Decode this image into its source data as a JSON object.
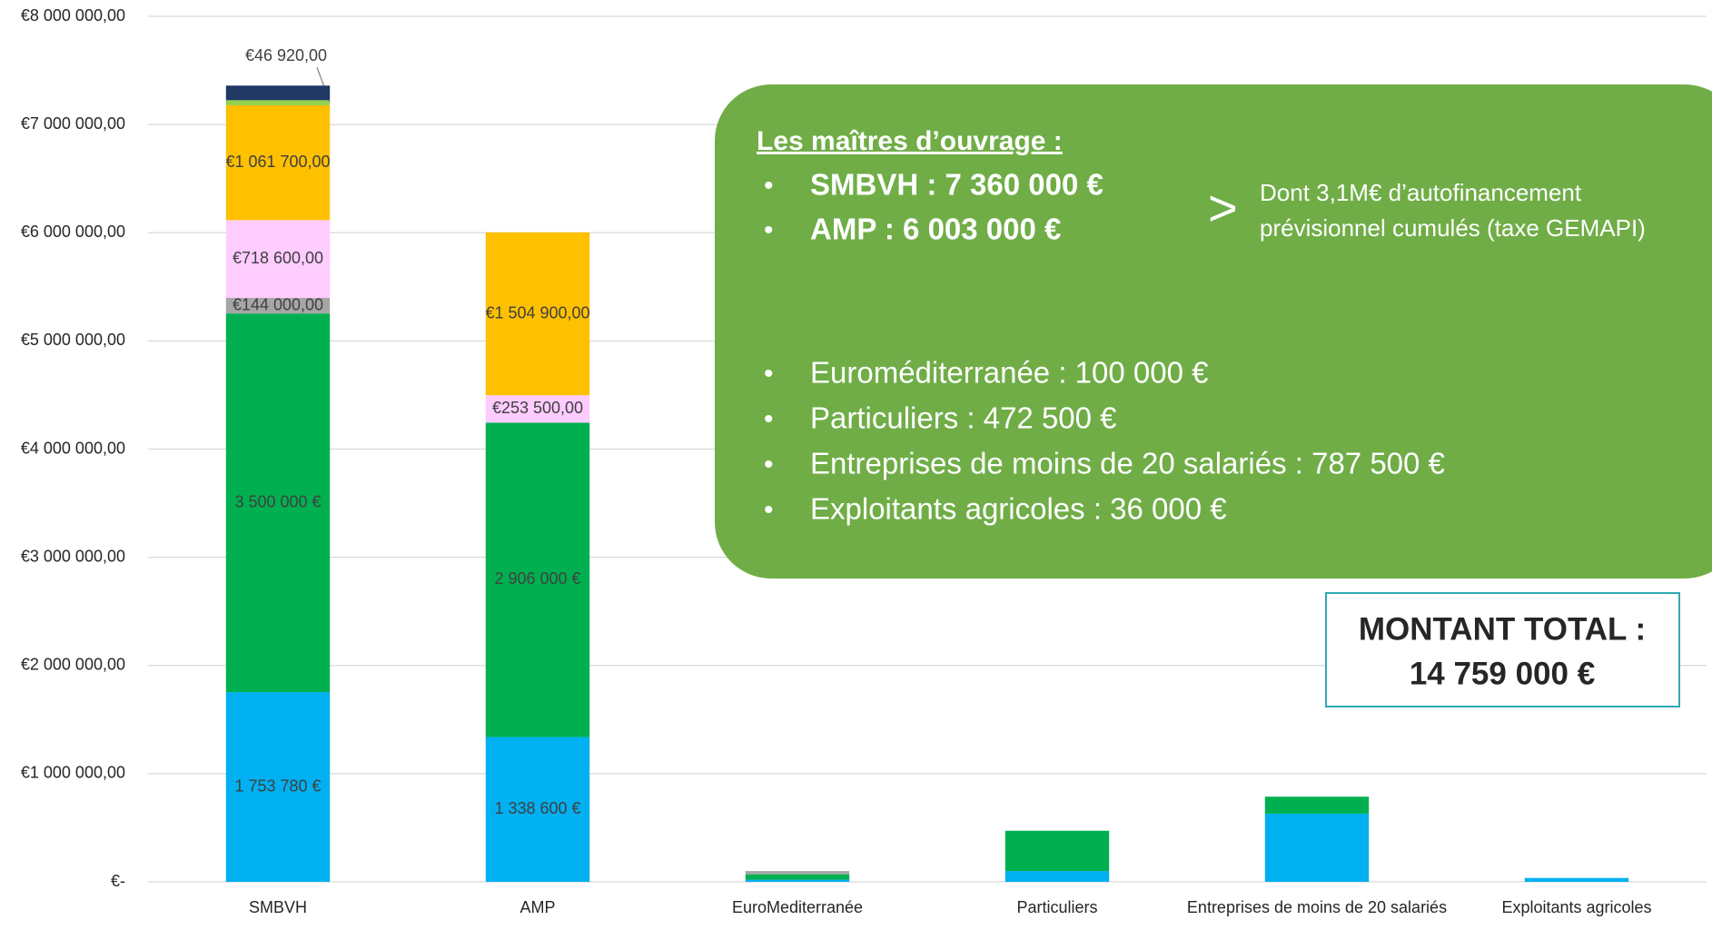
{
  "chart_data": {
    "type": "stacked_bar",
    "categories": [
      "SMBVH",
      "AMP",
      "EuroMediterranée",
      "Particuliers",
      "Entreprises de moins de 20 salariés",
      "Exploitants agricoles"
    ],
    "series": [
      {
        "color": "#00b0f0",
        "values": [
          1753780,
          1338600,
          20000,
          100000,
          630000,
          36000
        ],
        "value_labels": [
          "1 753 780 €",
          "1 338 600 €",
          null,
          null,
          null,
          null
        ]
      },
      {
        "color": "#00b050",
        "values": [
          3500000,
          2906000,
          50000,
          372500,
          157500,
          null
        ],
        "value_labels": [
          "3 500 000 €",
          "2 906 000 €",
          null,
          null,
          null,
          null
        ]
      },
      {
        "color": "#a6a6a6",
        "values": [
          144000,
          null,
          30000,
          null,
          null,
          null
        ],
        "value_labels": [
          "€144 000,00",
          null,
          null,
          null,
          null,
          null
        ]
      },
      {
        "color": "#ffccff",
        "values": [
          718600,
          253500,
          null,
          null,
          null,
          null
        ],
        "value_labels": [
          "€718 600,00",
          "€253 500,00",
          null,
          null,
          null,
          null
        ]
      },
      {
        "color": "#ffc000",
        "values": [
          1061700,
          1504900,
          null,
          null,
          null,
          null
        ],
        "value_labels": [
          "€1 061 700,00",
          "€1 504 900,00",
          null,
          null,
          null,
          null
        ]
      },
      {
        "color": "#92d050",
        "values": [
          46920,
          null,
          null,
          null,
          null,
          null
        ],
        "value_labels": [
          "€46 920,00",
          null,
          null,
          null,
          null,
          null
        ]
      },
      {
        "color": "#203864",
        "values": [
          135000,
          null,
          null,
          null,
          null,
          null
        ],
        "value_labels": [
          null,
          null,
          null,
          null,
          null,
          null
        ]
      }
    ],
    "ylim": [
      0,
      8000000
    ],
    "yticks": [
      {
        "value": 0,
        "label": "€-"
      },
      {
        "value": 1000000,
        "label": "€1 000 000,00"
      },
      {
        "value": 2000000,
        "label": "€2 000 000,00"
      },
      {
        "value": 3000000,
        "label": "€3 000 000,00"
      },
      {
        "value": 4000000,
        "label": "€4 000 000,00"
      },
      {
        "value": 5000000,
        "label": "€5 000 000,00"
      },
      {
        "value": 6000000,
        "label": "€6 000 000,00"
      },
      {
        "value": 7000000,
        "label": "€7 000 000,00"
      },
      {
        "value": 8000000,
        "label": "€8 000 000,00"
      }
    ],
    "grid": true,
    "annotation": {
      "heading": "Les maîtres d’ouvrage :",
      "main_bullets": [
        "SMBVH : 7 360 000 €",
        "AMP : 6 003 000 €"
      ],
      "arrow": ">",
      "note": [
        "Dont 3,1M€ d’autofinancement",
        "prévisionnel cumulés (taxe GEMAPI)"
      ],
      "other_bullets": [
        "Euroméditerranée : 100 000 €",
        "Particuliers : 472 500 €",
        "Entreprises de moins de 20 salariés : 787 500 €",
        "Exploitants agricoles : 36 000 €"
      ]
    },
    "total": [
      "MONTANT TOTAL :",
      "14 759 000 €"
    ]
  }
}
